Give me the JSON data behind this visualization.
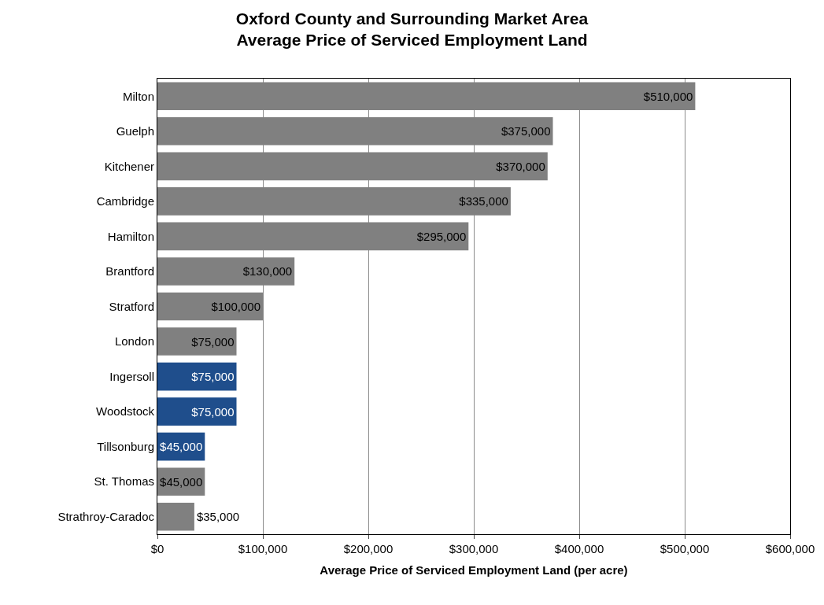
{
  "chart_data": {
    "type": "bar",
    "orientation": "horizontal",
    "title": "Oxford County and Surrounding Market Area\nAverage Price of Serviced Employment Land",
    "xlabel": "Average Price of Serviced Employment Land (per acre)",
    "categories": [
      "Milton",
      "Guelph",
      "Kitchener",
      "Cambridge",
      "Hamilton",
      "Brantford",
      "Stratford",
      "London",
      "Ingersoll",
      "Woodstock",
      "Tillsonburg",
      "St. Thomas",
      "Strathroy-Caradoc"
    ],
    "values": [
      510000,
      375000,
      370000,
      335000,
      295000,
      130000,
      100000,
      75000,
      75000,
      75000,
      45000,
      45000,
      35000
    ],
    "colors": [
      "#808080",
      "#808080",
      "#808080",
      "#808080",
      "#808080",
      "#808080",
      "#808080",
      "#808080",
      "#1f4e8c",
      "#1f4e8c",
      "#1f4e8c",
      "#808080",
      "#808080"
    ],
    "value_labels": [
      "$510,000",
      "$375,000",
      "$370,000",
      "$335,000",
      "$295,000",
      "$130,000",
      "$100,000",
      "$75,000",
      "$75,000",
      "$75,000",
      "$45,000",
      "$45,000",
      "$35,000"
    ],
    "xlim": [
      0,
      600000
    ],
    "xticks": [
      {
        "value": 0,
        "label": "$0"
      },
      {
        "value": 100000,
        "label": "$100,000"
      },
      {
        "value": 200000,
        "label": "$200,000"
      },
      {
        "value": 300000,
        "label": "$300,000"
      },
      {
        "value": 400000,
        "label": "$400,000"
      },
      {
        "value": 500000,
        "label": "$500,000"
      },
      {
        "value": 600000,
        "label": "$600,000"
      }
    ],
    "grid": "x"
  }
}
